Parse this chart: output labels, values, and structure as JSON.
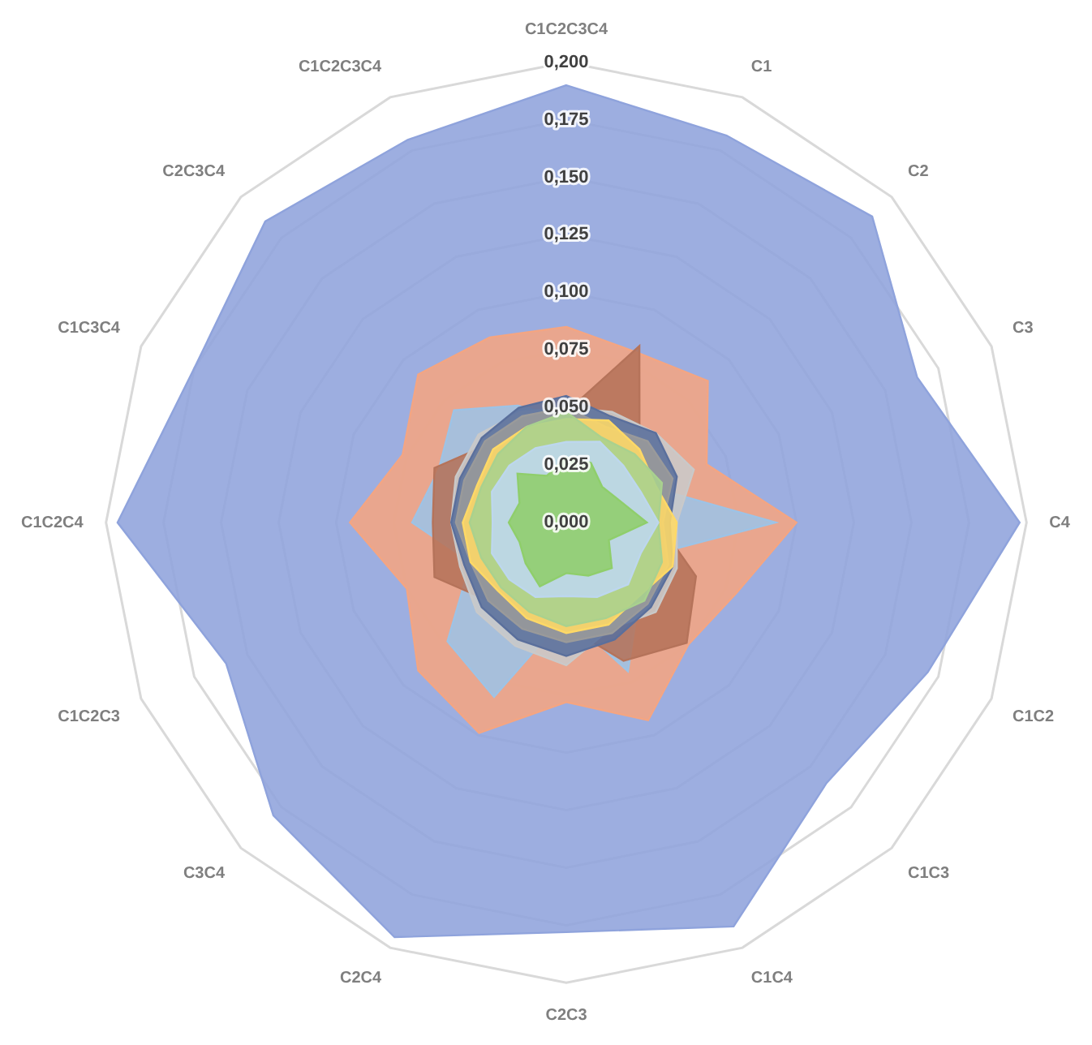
{
  "chart_data": {
    "type": "radar",
    "categories": [
      "C1C2C3C4",
      "C1",
      "C2",
      "C3",
      "C4",
      "C1C2",
      "C1C3",
      "C1C4",
      "C2C3",
      "C2C4",
      "C3C4",
      "C1C2C3",
      "C1C2C4",
      "C1C3C4",
      "C2C3C4",
      "C1C2C3C4"
    ],
    "ylim": [
      0,
      0.2
    ],
    "yticks": [
      {
        "value": 0,
        "label": "0,000"
      },
      {
        "value": 0.025,
        "label": "0,025"
      },
      {
        "value": 0.05,
        "label": "0,050"
      },
      {
        "value": 0.075,
        "label": "0,075"
      },
      {
        "value": 0.1,
        "label": "0,100"
      },
      {
        "value": 0.125,
        "label": "0,125"
      },
      {
        "value": 0.15,
        "label": "0,150"
      },
      {
        "value": 0.175,
        "label": "0,175"
      },
      {
        "value": 0.2,
        "label": "0,200"
      }
    ],
    "grid": true,
    "series": [
      {
        "color": "#8fa3dc",
        "values": [
          0.19,
          0.182,
          0.188,
          0.165,
          0.197,
          0.17,
          0.16,
          0.19,
          0.178,
          0.195,
          0.18,
          0.16,
          0.195,
          0.175,
          0.185,
          0.18
        ]
      },
      {
        "color": "#f4a582",
        "values": [
          0.085,
          0.08,
          0.087,
          0.066,
          0.1,
          0.08,
          0.075,
          0.093,
          0.078,
          0.099,
          0.091,
          0.075,
          0.094,
          0.077,
          0.091,
          0.087
        ]
      },
      {
        "color": "#9dc3e6",
        "values": [
          0.045,
          0.048,
          0.045,
          0.04,
          0.091,
          0.038,
          0.045,
          0.07,
          0.04,
          0.082,
          0.073,
          0.045,
          0.067,
          0.06,
          0.069,
          0.055
        ]
      },
      {
        "color": "#b5735a",
        "values": [
          0.048,
          0.083,
          0.045,
          0.045,
          0.04,
          0.061,
          0.074,
          0.065,
          0.045,
          0.045,
          0.048,
          0.062,
          0.058,
          0.062,
          0.048,
          0.045
        ]
      },
      {
        "color": "#c9c9c9",
        "values": [
          0.05,
          0.052,
          0.055,
          0.06,
          0.048,
          0.052,
          0.055,
          0.05,
          0.062,
          0.058,
          0.055,
          0.05,
          0.05,
          0.052,
          0.054,
          0.052
        ]
      },
      {
        "color": "#5a6f9c",
        "values": [
          0.055,
          0.05,
          0.055,
          0.052,
          0.045,
          0.05,
          0.052,
          0.055,
          0.058,
          0.055,
          0.052,
          0.048,
          0.05,
          0.05,
          0.052,
          0.054
        ]
      },
      {
        "color": "#9a9a9a",
        "values": [
          0.05,
          0.045,
          0.05,
          0.05,
          0.042,
          0.048,
          0.05,
          0.052,
          0.052,
          0.05,
          0.048,
          0.045,
          0.048,
          0.048,
          0.05,
          0.05
        ]
      },
      {
        "color": "#ffd966",
        "values": [
          0.045,
          0.048,
          0.045,
          0.042,
          0.048,
          0.05,
          0.045,
          0.048,
          0.048,
          0.045,
          0.042,
          0.045,
          0.045,
          0.042,
          0.045,
          0.045
        ]
      },
      {
        "color": "#a9d18e",
        "values": [
          0.048,
          0.04,
          0.042,
          0.045,
          0.04,
          0.045,
          0.048,
          0.045,
          0.045,
          0.042,
          0.04,
          0.04,
          0.042,
          0.04,
          0.042,
          0.045
        ]
      },
      {
        "color": "#bdd7ee",
        "values": [
          0.035,
          0.038,
          0.035,
          0.035,
          0.04,
          0.035,
          0.038,
          0.035,
          0.032,
          0.035,
          0.035,
          0.035,
          0.032,
          0.035,
          0.035,
          0.035
        ]
      },
      {
        "color": "#8fce6b",
        "values": [
          0.028,
          0.028,
          0.022,
          0.025,
          0.035,
          0.02,
          0.028,
          0.025,
          0.022,
          0.03,
          0.025,
          0.022,
          0.025,
          0.022,
          0.03,
          0.022
        ]
      }
    ]
  }
}
